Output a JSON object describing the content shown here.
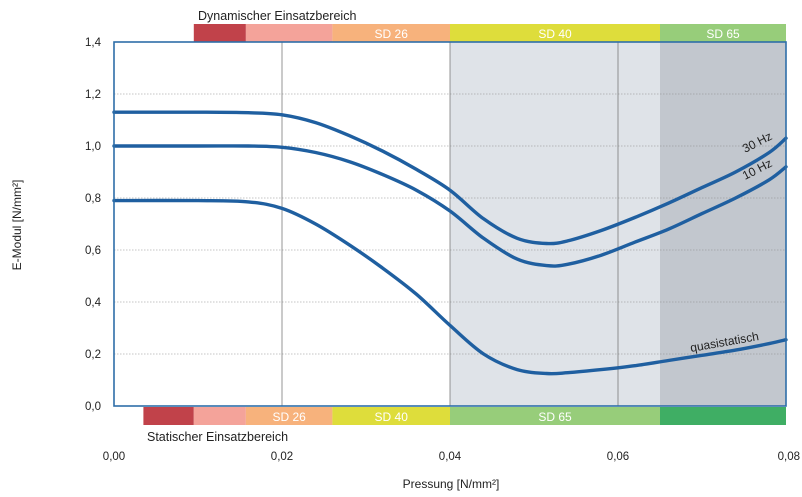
{
  "chart_data": {
    "type": "line",
    "xlabel": "Pressung [N/mm²]",
    "ylabel": "E-Modul [N/mm²]",
    "xlim": [
      0,
      0.08
    ],
    "ylim": [
      0,
      1.4
    ],
    "x_ticks": [
      "0,00",
      "0,02",
      "0,04",
      "0,06",
      "0,08"
    ],
    "y_ticks": [
      "0,0",
      "0,2",
      "0,4",
      "0,6",
      "0,8",
      "1,0",
      "1,2",
      "1,4"
    ],
    "grid": true,
    "series": [
      {
        "name": "30 Hz",
        "color": "#1f5fa0",
        "x": [
          0,
          0.01,
          0.016,
          0.02,
          0.024,
          0.028,
          0.032,
          0.036,
          0.04,
          0.044,
          0.048,
          0.0515,
          0.054,
          0.058,
          0.062,
          0.066,
          0.07,
          0.074,
          0.078,
          0.08
        ],
        "y": [
          1.13,
          1.13,
          1.128,
          1.12,
          1.09,
          1.04,
          0.98,
          0.91,
          0.83,
          0.72,
          0.645,
          0.625,
          0.635,
          0.675,
          0.725,
          0.78,
          0.84,
          0.9,
          0.975,
          1.03
        ]
      },
      {
        "name": "10 Hz",
        "color": "#1f5fa0",
        "x": [
          0,
          0.01,
          0.016,
          0.02,
          0.024,
          0.028,
          0.032,
          0.036,
          0.04,
          0.044,
          0.048,
          0.0515,
          0.054,
          0.058,
          0.062,
          0.066,
          0.07,
          0.074,
          0.078,
          0.08
        ],
        "y": [
          1.0,
          1.0,
          1.0,
          0.995,
          0.975,
          0.94,
          0.89,
          0.83,
          0.75,
          0.645,
          0.565,
          0.54,
          0.545,
          0.58,
          0.63,
          0.68,
          0.74,
          0.8,
          0.87,
          0.92
        ]
      },
      {
        "name": "quasistatisch",
        "color": "#1f5fa0",
        "x": [
          0,
          0.01,
          0.016,
          0.02,
          0.024,
          0.028,
          0.032,
          0.036,
          0.04,
          0.044,
          0.048,
          0.0515,
          0.054,
          0.058,
          0.062,
          0.066,
          0.07,
          0.074,
          0.078,
          0.08
        ],
        "y": [
          0.79,
          0.79,
          0.785,
          0.76,
          0.7,
          0.62,
          0.53,
          0.43,
          0.31,
          0.2,
          0.14,
          0.125,
          0.128,
          0.14,
          0.155,
          0.175,
          0.195,
          0.215,
          0.24,
          0.255
        ]
      }
    ],
    "curve_labels": [
      "30 Hz",
      "10 Hz",
      "quasistatisch"
    ],
    "top_range": {
      "title": "Dynamischer Einsatzbereich",
      "bands": [
        {
          "from": 0.0095,
          "to": 0.0157,
          "color": "#c1424a",
          "label": ""
        },
        {
          "from": 0.0157,
          "to": 0.026,
          "color": "#f4a39a",
          "label": ""
        },
        {
          "from": 0.026,
          "to": 0.04,
          "color": "#f7b27c",
          "label": "SD 26"
        },
        {
          "from": 0.04,
          "to": 0.065,
          "color": "#dedd3b",
          "label": "SD 40"
        },
        {
          "from": 0.065,
          "to": 0.08,
          "color": "#97cd7a",
          "label": "SD 65"
        }
      ]
    },
    "bottom_range": {
      "title": "Statischer Einsatzbereich",
      "bands": [
        {
          "from": 0.0035,
          "to": 0.0095,
          "color": "#c1424a",
          "label": ""
        },
        {
          "from": 0.0095,
          "to": 0.0157,
          "color": "#f4a39a",
          "label": ""
        },
        {
          "from": 0.0157,
          "to": 0.026,
          "color": "#f7b27c",
          "label": "SD 26"
        },
        {
          "from": 0.026,
          "to": 0.04,
          "color": "#dedd3b",
          "label": "SD 40"
        },
        {
          "from": 0.04,
          "to": 0.065,
          "color": "#97cd7a",
          "label": "SD 65"
        },
        {
          "from": 0.065,
          "to": 0.08,
          "color": "#3fae64",
          "label": ""
        }
      ]
    },
    "shaded_regions": [
      {
        "from": 0.04,
        "to": 0.065,
        "color": "#dfe3e8"
      },
      {
        "from": 0.065,
        "to": 0.08,
        "color": "#c2c7ce"
      }
    ],
    "frame_color": "#2e6ea8"
  }
}
